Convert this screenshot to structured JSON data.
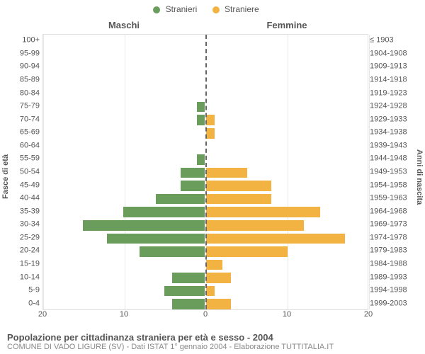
{
  "legend": {
    "male": {
      "label": "Stranieri",
      "color": "#6a9d5b"
    },
    "female": {
      "label": "Straniere",
      "color": "#f3b342"
    }
  },
  "headers": {
    "left": "Maschi",
    "right": "Femmine"
  },
  "axis_labels": {
    "left": "Fasce di età",
    "right": "Anni di nascita"
  },
  "footer": {
    "title": "Popolazione per cittadinanza straniera per età e sesso - 2004",
    "subtitle": "COMUNE DI VADO LIGURE (SV) - Dati ISTAT 1° gennaio 2004 - Elaborazione TUTTITALIA.IT"
  },
  "chart": {
    "type": "population-pyramid",
    "background_color": "#ffffff",
    "plot_border_color": "#e0e0e0",
    "grid_color": "#e8e8e8",
    "center_line_color": "#666666",
    "tick_fontsize": 11,
    "label_fontsize": 11,
    "male_color": "#6a9d5b",
    "female_color": "#f3b342",
    "xlim_each_side": 20,
    "xticks": [
      20,
      10,
      0,
      10,
      20
    ],
    "bar_fill_ratio": 0.78,
    "age_groups": [
      "100+",
      "95-99",
      "90-94",
      "85-89",
      "80-84",
      "75-79",
      "70-74",
      "65-69",
      "60-64",
      "55-59",
      "50-54",
      "45-49",
      "40-44",
      "35-39",
      "30-34",
      "25-29",
      "20-24",
      "15-19",
      "10-14",
      "5-9",
      "0-4"
    ],
    "birth_years": [
      "≤ 1903",
      "1904-1908",
      "1909-1913",
      "1914-1918",
      "1919-1923",
      "1924-1928",
      "1929-1933",
      "1934-1938",
      "1939-1943",
      "1944-1948",
      "1949-1953",
      "1954-1958",
      "1959-1963",
      "1964-1968",
      "1969-1973",
      "1974-1978",
      "1979-1983",
      "1984-1988",
      "1989-1993",
      "1994-1998",
      "1999-2003"
    ],
    "male": [
      0,
      0,
      0,
      0,
      0,
      1,
      1,
      0,
      0,
      1,
      3,
      3,
      6,
      10,
      15,
      12,
      8,
      0,
      4,
      5,
      4
    ],
    "female": [
      0,
      0,
      0,
      0,
      0,
      0,
      1,
      1,
      0,
      0,
      5,
      8,
      8,
      14,
      12,
      17,
      10,
      2,
      3,
      1,
      3
    ]
  }
}
